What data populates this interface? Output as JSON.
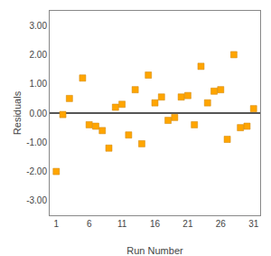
{
  "chart_data": {
    "type": "scatter",
    "x": [
      1,
      2,
      3,
      5,
      6,
      7,
      8,
      9,
      10,
      11,
      12,
      13,
      14,
      15,
      16,
      17,
      18,
      19,
      20,
      21,
      22,
      23,
      24,
      25,
      26,
      27,
      28,
      29,
      30,
      31
    ],
    "values": [
      -2.0,
      -0.05,
      0.5,
      1.2,
      -0.4,
      -0.45,
      -0.6,
      -1.2,
      0.2,
      0.3,
      -0.75,
      0.8,
      -1.05,
      1.3,
      0.35,
      0.55,
      -0.25,
      -0.15,
      0.55,
      0.6,
      -0.4,
      1.6,
      0.35,
      0.75,
      0.8,
      -0.9,
      2.0,
      -0.5,
      -0.45,
      0.15
    ],
    "color": "#FFA500",
    "marker": "square",
    "xlabel": "Run Number",
    "ylabel": "Residuals",
    "xlim": [
      0,
      32
    ],
    "ylim": [
      -3.5,
      3.5
    ],
    "xticks": [
      1,
      6,
      11,
      16,
      21,
      26,
      31
    ],
    "yticks": [
      {
        "value": -3.0,
        "label": "-3.00"
      },
      {
        "value": -2.0,
        "label": "-2.00"
      },
      {
        "value": -1.0,
        "label": "-1.00"
      },
      {
        "value": 0.0,
        "label": "0.00"
      },
      {
        "value": 1.0,
        "label": "1.00"
      },
      {
        "value": 2.0,
        "label": "2.00"
      },
      {
        "value": 3.0,
        "label": "3.00"
      }
    ],
    "grid": false
  }
}
